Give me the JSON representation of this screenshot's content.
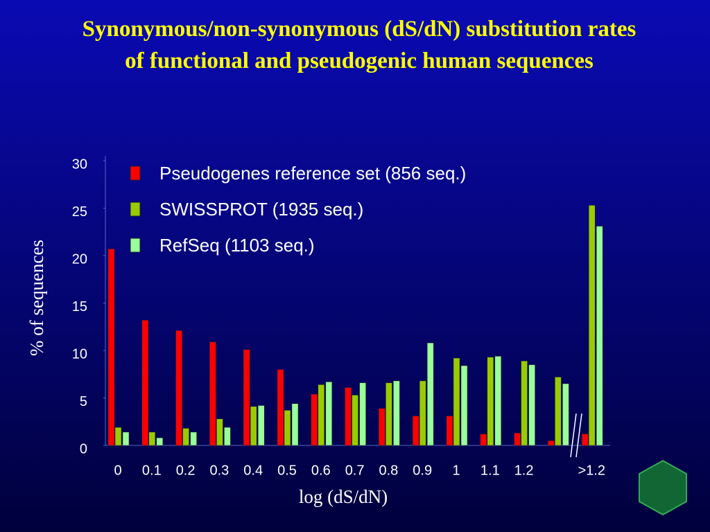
{
  "chart_data": {
    "type": "bar",
    "title": "Synonymous/non-synonymous (dS/dN) substitution rates of functional and pseudogenic human sequences",
    "x_label": "log (dS/dN)",
    "y_label": "% of sequences",
    "categories": [
      "0",
      "0.1",
      "0.2",
      "0.3",
      "0.4",
      "0.5",
      "0.6",
      "0.7",
      "0.8",
      "0.9",
      "1",
      "1.1",
      "1.2",
      null,
      ">1.2"
    ],
    "series": [
      {
        "name": "Pseudogenes reference set (856 seq.)",
        "color": "#ff0000",
        "values": [
          20.7,
          13.2,
          12.1,
          10.9,
          10.1,
          8.0,
          5.4,
          6.1,
          3.9,
          3.1,
          3.1,
          1.2,
          1.3,
          0.5,
          1.2
        ]
      },
      {
        "name": "SWISSPROT (1935 seq.)",
        "color": "#99cc00",
        "values": [
          1.9,
          1.4,
          1.8,
          2.8,
          4.1,
          3.7,
          6.4,
          5.3,
          6.6,
          6.8,
          9.2,
          9.3,
          8.9,
          7.2,
          25.3
        ]
      },
      {
        "name": "RefSeq (1103 seq.)",
        "color": "#99ff99",
        "values": [
          1.4,
          0.8,
          1.4,
          1.9,
          4.2,
          4.4,
          6.7,
          6.6,
          6.8,
          10.8,
          8.4,
          9.4,
          8.5,
          6.5,
          23.1
        ]
      }
    ],
    "ylim": [
      0,
      30
    ],
    "yticks": [
      0,
      5,
      10,
      15,
      20,
      25,
      30
    ]
  }
}
